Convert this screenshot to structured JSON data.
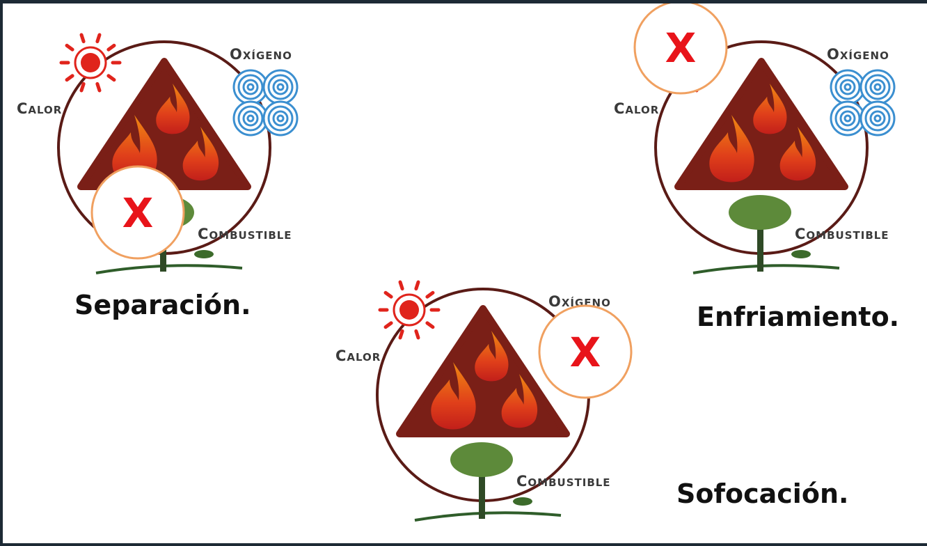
{
  "diagrams": [
    {
      "heat": "Calor",
      "oxygen": "Oxígeno",
      "fuel": "Combustible",
      "mark": "X",
      "caption": "Separación."
    },
    {
      "heat": "Calor",
      "oxygen": "Oxígeno",
      "fuel": "Combustible",
      "mark": "X",
      "caption": "Enfriamiento."
    },
    {
      "heat": "Calor",
      "oxygen": "Oxígeno",
      "fuel": "Combustible",
      "mark": "X",
      "caption": "Sofocación."
    }
  ]
}
